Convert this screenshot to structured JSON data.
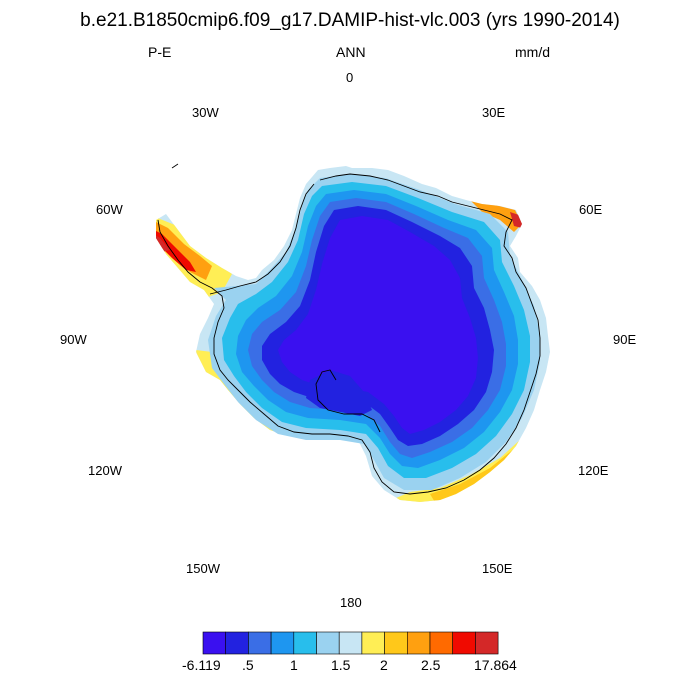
{
  "title": "b.e21.B1850cmip6.f09_g17.DAMIP-hist-vlc.003 (yrs 1990-2014)",
  "left_label": "P-E",
  "center_label": "ANN",
  "right_label": "mm/d",
  "longitude_labels": {
    "0": "0",
    "30E": "30E",
    "60E": "60E",
    "90E": "90E",
    "120E": "120E",
    "150E": "150E",
    "180": "180",
    "150W": "150W",
    "120W": "120W",
    "90W": "90W",
    "60W": "60W",
    "30W": "30W"
  },
  "colorbar": {
    "colors": [
      "#3a10f0",
      "#2222e0",
      "#3a6ee6",
      "#1e96f0",
      "#28beec",
      "#9ad2f0",
      "#c8e6f4",
      "#ffee55",
      "#ffc81a",
      "#ffa010",
      "#ff6a00",
      "#f00a00",
      "#d42828"
    ],
    "labels": [
      "-6.119",
      ".5",
      "1",
      "1.5",
      "2",
      "2.5",
      "17.864"
    ]
  },
  "colors": {
    "ice_interior": "#3a10f0",
    "ice_inner_ring": "#2222e0",
    "coast_ring_1": "#3a6ee6",
    "coast_ring_2": "#1e96f0",
    "coast_ring_3": "#9ad2f0",
    "coast_high": "#ffc81a",
    "peninsula_max": "#d42828"
  }
}
